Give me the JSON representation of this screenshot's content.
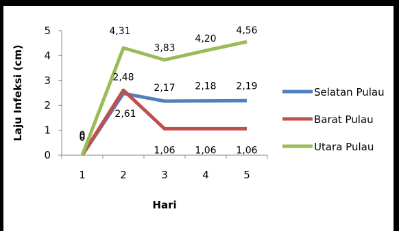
{
  "chart_data": {
    "type": "line",
    "title": "",
    "xlabel": "Hari",
    "ylabel": "Laju Infeksi (cm)",
    "categories": [
      "1",
      "2",
      "3",
      "4",
      "5"
    ],
    "ylim": [
      0,
      5
    ],
    "yticks": [
      "0",
      "1",
      "2",
      "3",
      "4",
      "5"
    ],
    "grid": false,
    "legend_position": "right",
    "series": [
      {
        "name": "Selatan Pulau",
        "color": "#4F81BD",
        "values": [
          0,
          2.48,
          2.17,
          2.18,
          2.19
        ],
        "labels": [
          "0",
          "2,48",
          "2,17",
          "2,18",
          "2,19"
        ]
      },
      {
        "name": "Barat Pulau",
        "color": "#C0504D",
        "values": [
          0,
          2.61,
          1.06,
          1.06,
          1.06
        ],
        "labels": [
          "0",
          "2,61",
          "1,06",
          "1,06",
          "1,06"
        ]
      },
      {
        "name": "Utara Pulau",
        "color": "#9BBB59",
        "values": [
          0,
          4.31,
          3.83,
          4.2,
          4.56
        ],
        "labels": [
          "0",
          "4,31",
          "3,83",
          "4,20",
          "4,56"
        ]
      }
    ]
  }
}
